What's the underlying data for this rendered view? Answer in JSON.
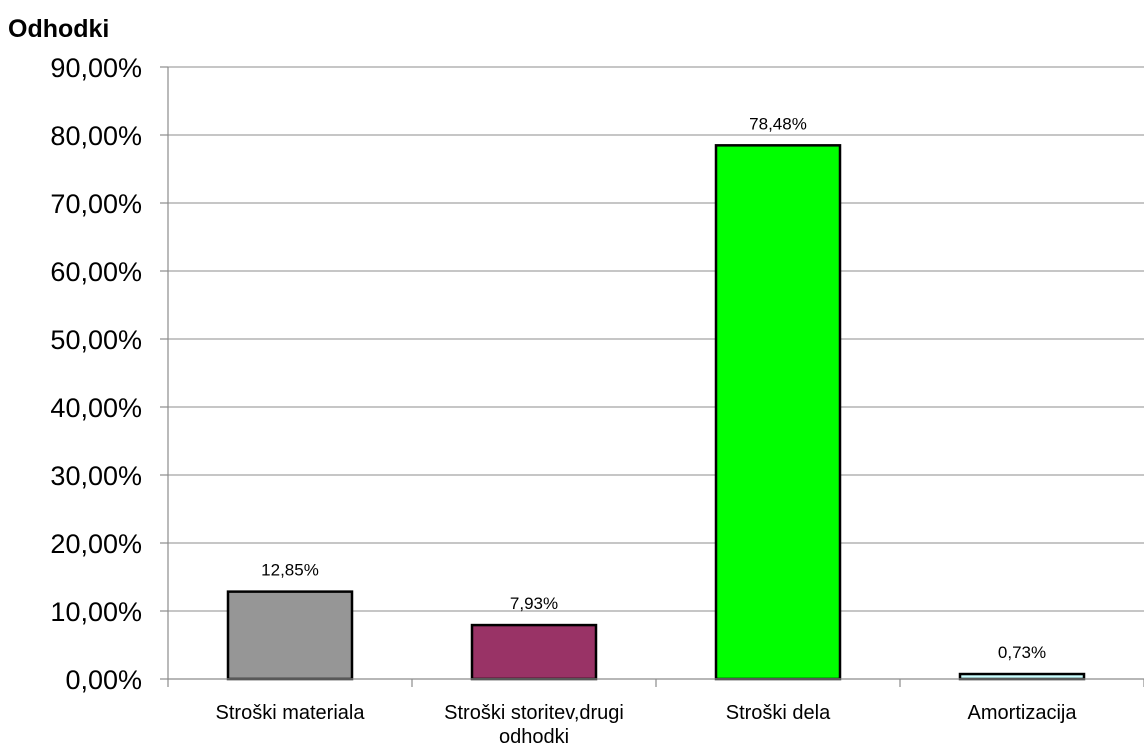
{
  "chart_data": {
    "type": "bar",
    "title": "Odhodki",
    "categories": [
      [
        "Stroški materiala"
      ],
      [
        "Stroški storitev,drugi",
        "odhodki"
      ],
      [
        "Stroški dela"
      ],
      [
        "Amortizacija"
      ]
    ],
    "values": [
      12.85,
      7.93,
      78.48,
      0.73
    ],
    "value_labels": [
      "12,85%",
      "7,93%",
      "78,48%",
      "0,73%"
    ],
    "bar_colors": [
      "#969696",
      "#993366",
      "#00ff00",
      "#ccffff"
    ],
    "ylim": [
      0,
      90
    ],
    "yticks": [
      0,
      10,
      20,
      30,
      40,
      50,
      60,
      70,
      80,
      90
    ],
    "ytick_labels": [
      "0,00%",
      "10,00%",
      "20,00%",
      "30,00%",
      "40,00%",
      "50,00%",
      "60,00%",
      "70,00%",
      "80,00%",
      "90,00%"
    ],
    "grid": true,
    "legend": "none",
    "xlabel": "",
    "ylabel": ""
  }
}
